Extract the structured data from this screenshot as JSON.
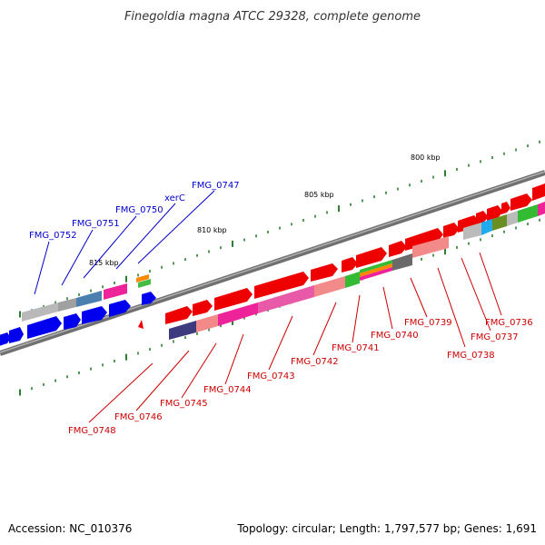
{
  "title": "Finegoldia magna ATCC 29328, complete genome",
  "footer": {
    "accession": "Accession: NC_010376",
    "info": "Topology: circular; Length: 1,797,577 bp; Genes: 1,691"
  },
  "ticks": [
    "800 kbp",
    "805 kbp",
    "810 kbp",
    "815 kbp"
  ],
  "genes_upper": [
    "FMG_0752",
    "FMG_0751",
    "FMG_0750",
    "xerC",
    "FMG_0747"
  ],
  "genes_lower": [
    "FMG_0748",
    "FMG_0746",
    "FMG_0745",
    "FMG_0744",
    "FMG_0743",
    "FMG_0742",
    "FMG_0741",
    "FMG_0740",
    "FMG_0739",
    "FMG_0738",
    "FMG_0737",
    "FMG_0736"
  ],
  "colors": {
    "forward": "#ee0000",
    "reverse": "#0000ee",
    "upper_label": "#0000cc",
    "lower_label": "#cc0000",
    "backbone": "#808080",
    "tick": "#2e7d32"
  }
}
